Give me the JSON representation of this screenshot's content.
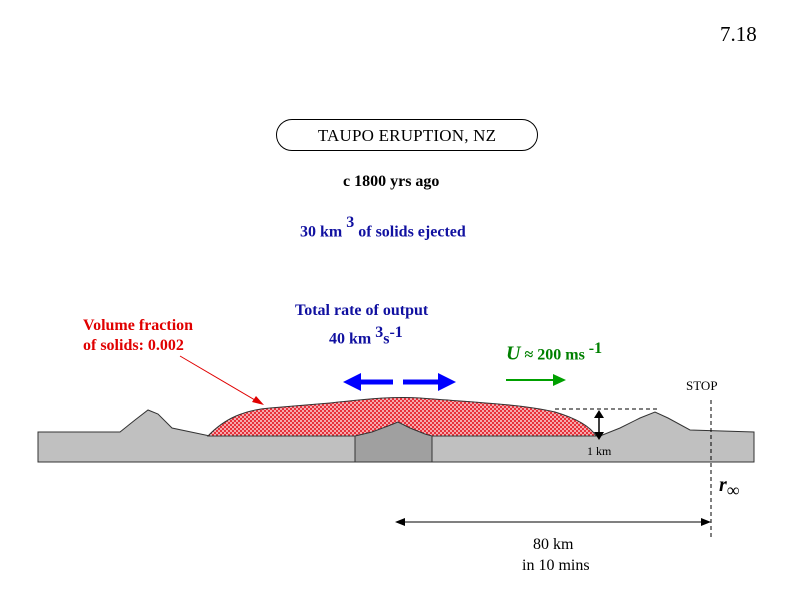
{
  "slide_number": "7.18",
  "title": "TAUPO  ERUPTION, NZ",
  "age": "c 1800 yrs ago",
  "solids": {
    "prefix": "30 km",
    "exponent": "3",
    "suffix": " of solids ejected"
  },
  "volume_fraction": {
    "line1": "Volume fraction",
    "line2": "of solids: 0.002"
  },
  "output_rate": {
    "title": "Total rate of output",
    "value": "40 km",
    "exp": "3",
    "unit": "s",
    "unit_exp": "-1"
  },
  "speed": {
    "symbol": "U",
    "approx": "≈",
    "value": "200 ms",
    "exp": "-1"
  },
  "labels": {
    "stop": "STOP",
    "height": "1 km",
    "r_symbol": "r",
    "r_subscript": "∞"
  },
  "distance": {
    "line1": "80 km",
    "line2": "in 10 mins"
  },
  "colors": {
    "ground": "#c0c0c0",
    "vent": "#a0a0a0",
    "flow": "#e8303a",
    "blue_text": "#1010a0",
    "red_text": "#e00000",
    "green_text": "#008000",
    "arrow_blue": "#0000ff",
    "arrow_green": "#00a000"
  }
}
